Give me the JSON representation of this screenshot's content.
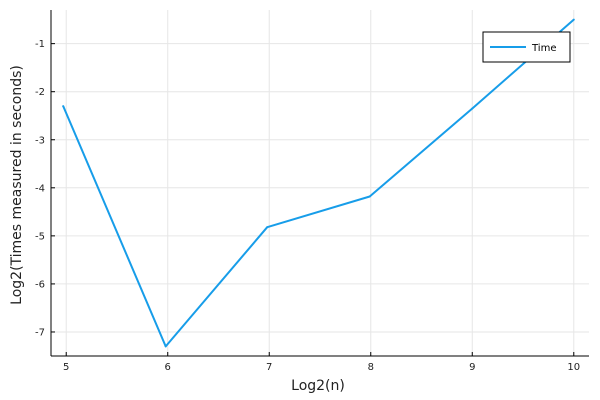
{
  "chart_data": {
    "type": "line",
    "xlabel": "Log2(n)",
    "ylabel": "Log2(Times measured in seconds)",
    "xlim": [
      4.85,
      10.15
    ],
    "ylim": [
      -7.5,
      -0.3
    ],
    "xticks": [
      5,
      6,
      7,
      8,
      9,
      10
    ],
    "yticks": [
      -7,
      -6,
      -5,
      -4,
      -3,
      -2,
      -1
    ],
    "grid": true,
    "legend_position": "top-right",
    "series": [
      {
        "name": "Time",
        "color": "#179de9",
        "x": [
          4.97,
          5.98,
          6.98,
          7.99,
          9.0,
          10.0
        ],
        "y": [
          -2.3,
          -7.3,
          -4.82,
          -4.18,
          -2.35,
          -0.5
        ]
      }
    ]
  }
}
